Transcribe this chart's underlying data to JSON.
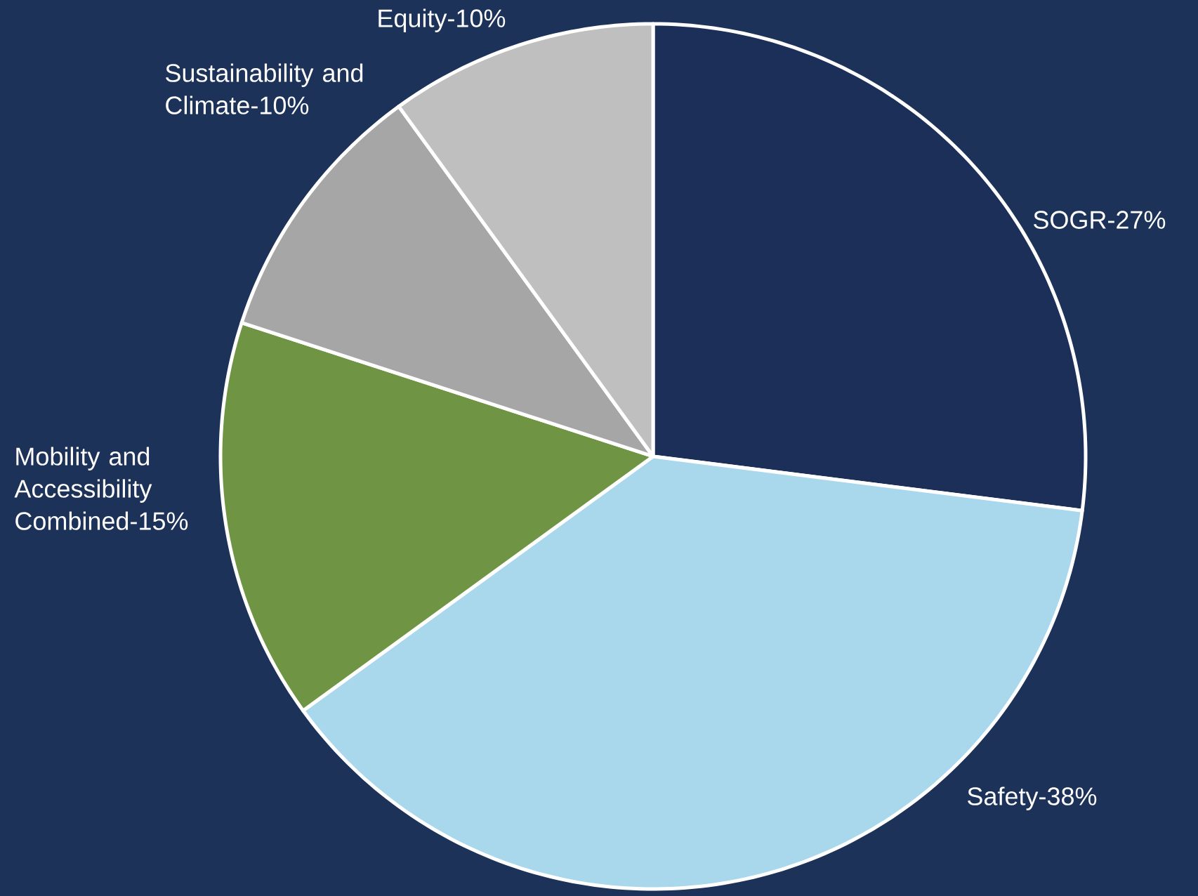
{
  "chart_data": {
    "type": "pie",
    "categories": [
      "SOGR-27%",
      "Safety-38%",
      "Mobility and Accessibility Combined-15%",
      "Sustainability and Climate-10%",
      "Equity-10%"
    ],
    "values": [
      27,
      38,
      15,
      10,
      10
    ],
    "colors": [
      "#1c2f58",
      "#a9d8ec",
      "#6f9444",
      "#a6a6a6",
      "#bfbfbf"
    ]
  }
}
